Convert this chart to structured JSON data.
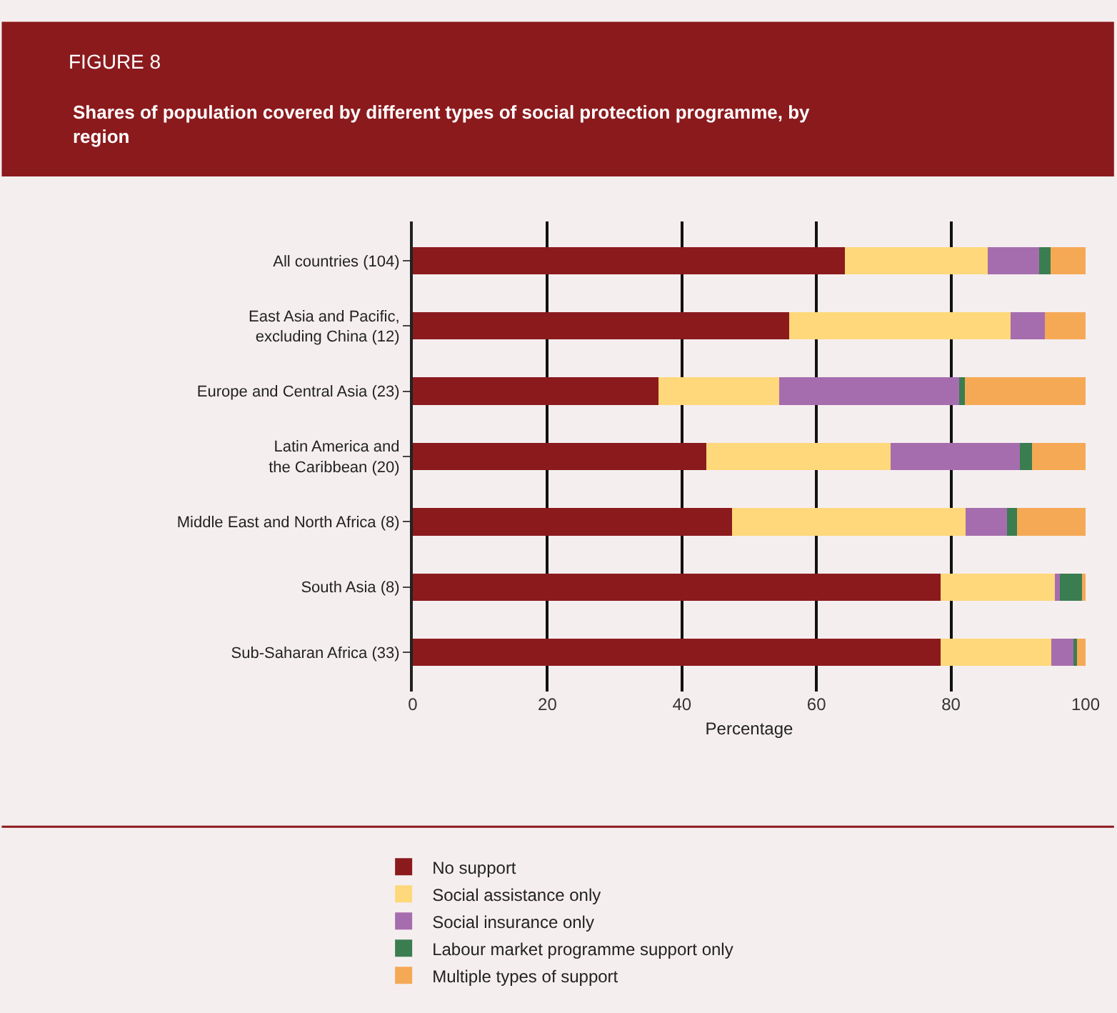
{
  "chart_data": {
    "type": "bar",
    "orientation": "horizontal",
    "stacked": true,
    "title": "FIGURE 8",
    "subtitle": "Shares of population covered by different types of social protection programme, by region",
    "xlabel": "Percentage",
    "categories": [
      "All countries (104)",
      "East Asia and Pacific,\nexcluding China (12)",
      "Europe and Central Asia (23)",
      "Latin America and\nthe Caribbean (20)",
      "Middle East and North Africa (8)",
      "South Asia (8)",
      "Sub-Saharan Africa (33)"
    ],
    "series": [
      {
        "name": "No support",
        "color": "#8b1a1d",
        "values": [
          64.2,
          55.9,
          36.5,
          43.6,
          47.4,
          78.4,
          78.4
        ]
      },
      {
        "name": "Social assistance only",
        "color": "#fed87a",
        "values": [
          21.3,
          32.9,
          18.0,
          27.4,
          34.8,
          17.0,
          16.5
        ]
      },
      {
        "name": "Social insurance only",
        "color": "#a66dae",
        "values": [
          7.6,
          5.1,
          26.7,
          19.2,
          6.1,
          0.8,
          3.3
        ]
      },
      {
        "name": "Labour market programme support only",
        "color": "#3a7d51",
        "values": [
          1.7,
          0,
          0.9,
          1.8,
          1.5,
          3.3,
          0.5
        ]
      },
      {
        "name": "Multiple types of support",
        "color": "#f5a955",
        "values": [
          5.2,
          6.1,
          17.9,
          8.0,
          10.2,
          0.5,
          1.3
        ]
      }
    ],
    "xlim": [
      0,
      100
    ],
    "xticks": [
      0,
      20,
      40,
      60,
      80,
      100
    ],
    "grid": "x",
    "legend": "bottom"
  }
}
